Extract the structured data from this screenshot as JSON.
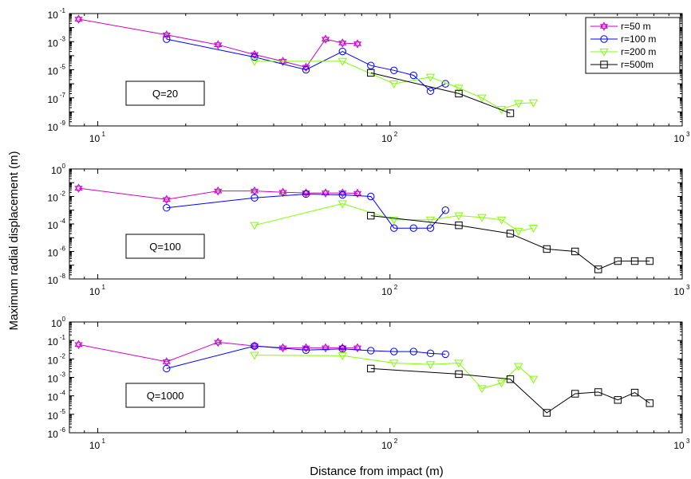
{
  "figure": {
    "ylabel": "Maximum radial displacement (m)",
    "xlabel": "Distance from impact (m)"
  },
  "colors": {
    "r50": "#cc00cc",
    "r100": "#0000ff",
    "r200": "#80ff00",
    "r500": "#000000"
  },
  "legend": [
    "r=50  m",
    "r=100  m",
    "r=200  m",
    "r=500m"
  ],
  "chart_data": [
    {
      "type": "line",
      "title": "Q=20",
      "xscale": "log",
      "yscale": "log",
      "xlim": [
        8,
        1000
      ],
      "ylim": [
        1e-09,
        0.1
      ],
      "xticks": [
        10,
        100,
        1000
      ],
      "xtick_labels": [
        "10",
        "10",
        "10"
      ],
      "xtick_exps": [
        "1",
        "2",
        "3"
      ],
      "yticks": [
        1e-09,
        1e-07,
        1e-05,
        0.001,
        0.1
      ],
      "ytick_labels": [
        "10",
        "10",
        "10",
        "10",
        "10"
      ],
      "ytick_exps": [
        "-9",
        "-7",
        "-5",
        "-3",
        "-1"
      ],
      "legend_position": "top-right",
      "series": [
        {
          "name": "r=50  m",
          "marker": "star",
          "x": [
            8.6,
            17.2,
            25.8,
            34.4,
            43,
            51.6,
            60.2,
            68.8,
            77.4
          ],
          "y": [
            0.04,
            0.003,
            0.0006,
            0.00012,
            4e-05,
            1.5e-05,
            0.0015,
            0.0008,
            0.0007
          ]
        },
        {
          "name": "r=100  m",
          "marker": "circle",
          "x": [
            17.2,
            34.4,
            51.6,
            68.8,
            86,
            103.2,
            120.4,
            137.6,
            154.8
          ],
          "y": [
            0.0015,
            8e-05,
            1e-05,
            0.0002,
            2e-05,
            9e-06,
            4e-06,
            3e-07,
            1e-06
          ]
        },
        {
          "name": "r=200  m",
          "marker": "triangle",
          "x": [
            34.4,
            68.8,
            103.2,
            137.6,
            172,
            206.4,
            240.8,
            275.2,
            309.6
          ],
          "y": [
            4e-05,
            4e-05,
            1e-06,
            3e-06,
            5e-07,
            1e-07,
            1.5e-08,
            4e-08,
            4.5e-08
          ]
        },
        {
          "name": "r=500m",
          "marker": "square",
          "x": [
            86,
            172,
            258
          ],
          "y": [
            6e-06,
            2e-07,
            8e-09
          ]
        }
      ]
    },
    {
      "type": "line",
      "title": "Q=100",
      "xscale": "log",
      "yscale": "log",
      "xlim": [
        8,
        1000
      ],
      "ylim": [
        1e-08,
        1
      ],
      "xticks": [
        10,
        100,
        1000
      ],
      "xtick_labels": [
        "10",
        "10",
        "10"
      ],
      "xtick_exps": [
        "1",
        "2",
        "3"
      ],
      "yticks": [
        1e-08,
        1e-06,
        0.0001,
        0.01,
        1
      ],
      "ytick_labels": [
        "10",
        "10",
        "10",
        "10",
        "10"
      ],
      "ytick_exps": [
        "-8",
        "-6",
        "-4",
        "-2",
        "0"
      ],
      "series": [
        {
          "name": "r=50  m",
          "marker": "star",
          "x": [
            8.6,
            17.2,
            25.8,
            34.4,
            43,
            51.6,
            60.2,
            68.8,
            77.4
          ],
          "y": [
            0.04,
            0.006,
            0.025,
            0.025,
            0.02,
            0.018,
            0.018,
            0.018,
            0.017
          ]
        },
        {
          "name": "r=100  m",
          "marker": "circle",
          "x": [
            17.2,
            34.4,
            51.6,
            68.8,
            86,
            103.2,
            120.4,
            137.6,
            154.8
          ],
          "y": [
            0.0015,
            0.008,
            0.015,
            0.013,
            0.01,
            5e-05,
            5e-05,
            5e-05,
            0.001
          ]
        },
        {
          "name": "r=200  m",
          "marker": "triangle",
          "x": [
            34.4,
            68.8,
            103.2,
            137.6,
            172,
            206.4,
            240.8,
            275.2,
            309.6
          ],
          "y": [
            8e-05,
            0.003,
            0.0002,
            0.0002,
            0.0004,
            0.0003,
            0.0002,
            3e-05,
            5e-05
          ]
        },
        {
          "name": "r=500m",
          "marker": "square",
          "x": [
            86,
            172,
            258,
            344,
            430,
            516,
            602,
            688,
            774
          ],
          "y": [
            0.0004,
            8e-05,
            2e-05,
            1.5e-06,
            1e-06,
            5e-08,
            2e-07,
            2e-07,
            2e-07
          ]
        }
      ]
    },
    {
      "type": "line",
      "title": "Q=1000",
      "xscale": "log",
      "yscale": "log",
      "xlim": [
        8,
        1000
      ],
      "ylim": [
        1e-06,
        1
      ],
      "xticks": [
        10,
        100,
        1000
      ],
      "xtick_labels": [
        "10",
        "10",
        "10"
      ],
      "xtick_exps": [
        "1",
        "2",
        "3"
      ],
      "yticks": [
        1e-06,
        1e-05,
        0.0001,
        0.001,
        0.01,
        0.1,
        1
      ],
      "ytick_labels": [
        "10",
        "10",
        "10",
        "10",
        "10",
        "10",
        "10"
      ],
      "ytick_exps": [
        "-6",
        "-5",
        "-4",
        "-3",
        "-2",
        "-1",
        "0"
      ],
      "series": [
        {
          "name": "r=50  m",
          "marker": "star",
          "x": [
            8.6,
            17.2,
            25.8,
            34.4,
            43,
            51.6,
            60.2,
            68.8,
            77.4
          ],
          "y": [
            0.06,
            0.007,
            0.08,
            0.05,
            0.04,
            0.04,
            0.04,
            0.04,
            0.04
          ]
        },
        {
          "name": "r=100  m",
          "marker": "circle",
          "x": [
            17.2,
            34.4,
            51.6,
            68.8,
            86,
            103.2,
            120.4,
            137.6,
            154.8
          ],
          "y": [
            0.003,
            0.05,
            0.03,
            0.035,
            0.028,
            0.025,
            0.025,
            0.02,
            0.018
          ]
        },
        {
          "name": "r=200  m",
          "marker": "triangle",
          "x": [
            34.4,
            68.8,
            103.2,
            137.6,
            172,
            206.4,
            240.8,
            275.2,
            309.6
          ],
          "y": [
            0.016,
            0.015,
            0.006,
            0.005,
            0.006,
            0.00025,
            0.0005,
            0.004,
            0.0008
          ]
        },
        {
          "name": "r=500m",
          "marker": "square",
          "x": [
            86,
            172,
            258,
            344,
            430,
            516,
            602,
            688,
            774
          ],
          "y": [
            0.003,
            0.0015,
            0.0008,
            1.2e-05,
            0.00013,
            0.00016,
            6e-05,
            0.00015,
            4e-05
          ]
        }
      ]
    }
  ]
}
